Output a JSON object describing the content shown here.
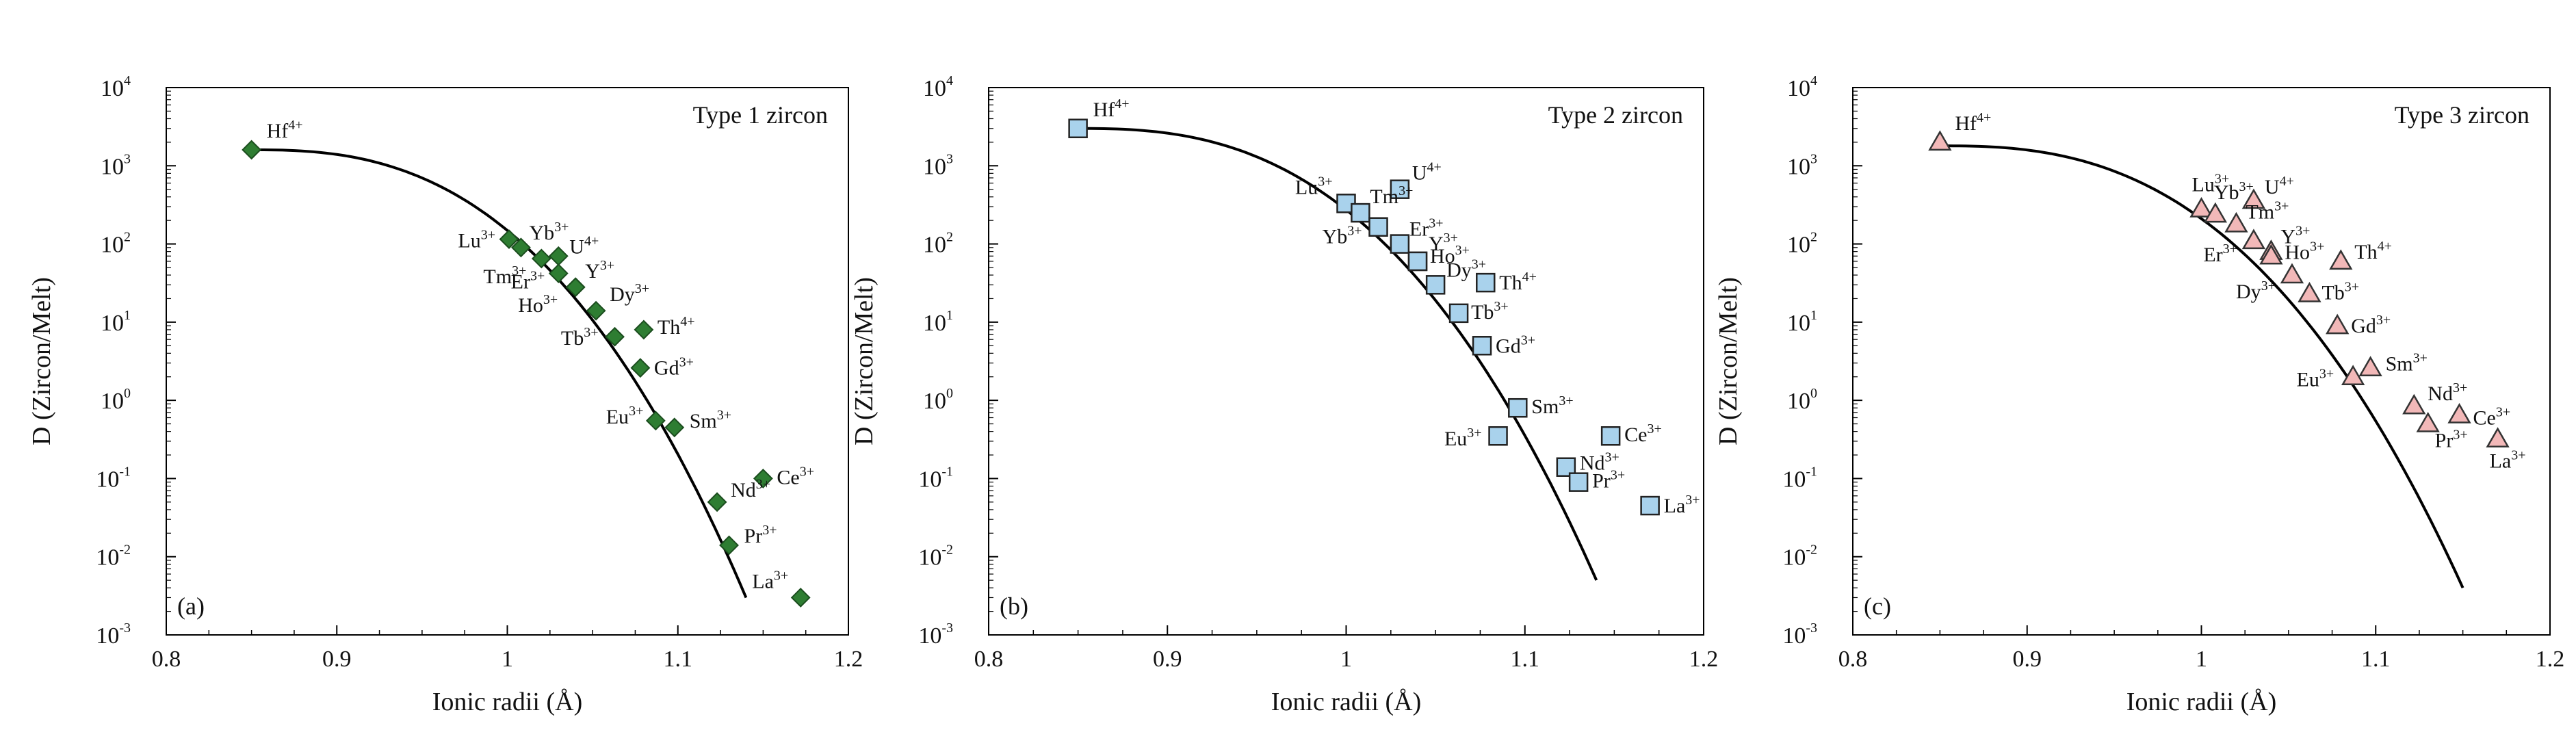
{
  "chart_data": [
    {
      "type": "scatter",
      "title": "Type 1 zircon",
      "panel_label": "(a)",
      "xlabel": "Ionic radii (Å)",
      "ylabel": "D (Zircon/Melt)",
      "xlim": [
        0.8,
        1.2
      ],
      "ylim_log10": [
        -3,
        4
      ],
      "xticks": [
        "0.8",
        "0.9",
        "1",
        "1.1",
        "1.2"
      ],
      "ytick_base": "10",
      "yticks_exp": [
        "-3",
        "-2",
        "-1",
        "0",
        "1",
        "2",
        "3",
        "4"
      ],
      "marker": "diamond",
      "marker_color": "#2e7d32",
      "curve": {
        "x0": 0.85,
        "x1": 1.14,
        "y0": 1600,
        "y1": 0.003
      },
      "points": [
        {
          "el": "Hf",
          "sup": "4+",
          "x": 0.85,
          "y": 1600
        },
        {
          "el": "Lu",
          "sup": "3+",
          "x": 1.001,
          "y": 115
        },
        {
          "el": "Yb",
          "sup": "3+",
          "x": 1.008,
          "y": 90
        },
        {
          "el": "Tm",
          "sup": "3+",
          "x": 1.02,
          "y": 65
        },
        {
          "el": "U",
          "sup": "4+",
          "x": 1.03,
          "y": 70
        },
        {
          "el": "Er",
          "sup": "3+",
          "x": 1.03,
          "y": 42
        },
        {
          "el": "Y",
          "sup": "3+",
          "x": 1.04,
          "y": 28
        },
        {
          "el": "Ho",
          "sup": "3+",
          "x": 1.04,
          "y": 28
        },
        {
          "el": "Dy",
          "sup": "3+",
          "x": 1.052,
          "y": 14
        },
        {
          "el": "Th",
          "sup": "4+",
          "x": 1.08,
          "y": 8
        },
        {
          "el": "Tb",
          "sup": "3+",
          "x": 1.063,
          "y": 6.5
        },
        {
          "el": "Gd",
          "sup": "3+",
          "x": 1.078,
          "y": 2.6
        },
        {
          "el": "Eu",
          "sup": "3+",
          "x": 1.087,
          "y": 0.55
        },
        {
          "el": "Sm",
          "sup": "3+",
          "x": 1.098,
          "y": 0.45
        },
        {
          "el": "Ce",
          "sup": "3+",
          "x": 1.15,
          "y": 0.1
        },
        {
          "el": "Nd",
          "sup": "3+",
          "x": 1.123,
          "y": 0.05
        },
        {
          "el": "Pr",
          "sup": "3+",
          "x": 1.13,
          "y": 0.014
        },
        {
          "el": "La",
          "sup": "3+",
          "x": 1.172,
          "y": 0.003
        }
      ]
    },
    {
      "type": "scatter",
      "title": "Type 2 zircon",
      "panel_label": "(b)",
      "xlabel": "Ionic radii (Å)",
      "ylabel": "D (Zircon/Melt)",
      "xlim": [
        0.8,
        1.2
      ],
      "ylim_log10": [
        -3,
        4
      ],
      "xticks": [
        "0.8",
        "0.9",
        "1",
        "1.1",
        "1.2"
      ],
      "ytick_base": "10",
      "yticks_exp": [
        "-3",
        "-2",
        "-1",
        "0",
        "1",
        "2",
        "3",
        "4"
      ],
      "marker": "square",
      "marker_color": "#a9d2ec",
      "curve": {
        "x0": 0.85,
        "x1": 1.14,
        "y0": 3000,
        "y1": 0.005
      },
      "points": [
        {
          "el": "Hf",
          "sup": "4+",
          "x": 0.85,
          "y": 3000
        },
        {
          "el": "U",
          "sup": "4+",
          "x": 1.03,
          "y": 500
        },
        {
          "el": "Lu",
          "sup": "3+",
          "x": 1.0,
          "y": 330
        },
        {
          "el": "Tm",
          "sup": "3+",
          "x": 1.008,
          "y": 250
        },
        {
          "el": "Yb",
          "sup": "3+",
          "x": 1.018,
          "y": 165
        },
        {
          "el": "Er",
          "sup": "3+",
          "x": 1.03,
          "y": 100
        },
        {
          "el": "Y",
          "sup": "3+",
          "x": 1.04,
          "y": 60
        },
        {
          "el": "Ho",
          "sup": "3+",
          "x": 1.04,
          "y": 60
        },
        {
          "el": "Dy",
          "sup": "3+",
          "x": 1.05,
          "y": 30
        },
        {
          "el": "Th",
          "sup": "4+",
          "x": 1.078,
          "y": 32
        },
        {
          "el": "Tb",
          "sup": "3+",
          "x": 1.063,
          "y": 13
        },
        {
          "el": "Gd",
          "sup": "3+",
          "x": 1.076,
          "y": 5
        },
        {
          "el": "Sm",
          "sup": "3+",
          "x": 1.096,
          "y": 0.8
        },
        {
          "el": "Eu",
          "sup": "3+",
          "x": 1.085,
          "y": 0.35
        },
        {
          "el": "Ce",
          "sup": "3+",
          "x": 1.148,
          "y": 0.35
        },
        {
          "el": "Nd",
          "sup": "3+",
          "x": 1.123,
          "y": 0.14
        },
        {
          "el": "Pr",
          "sup": "3+",
          "x": 1.13,
          "y": 0.09
        },
        {
          "el": "La",
          "sup": "3+",
          "x": 1.17,
          "y": 0.045
        }
      ]
    },
    {
      "type": "scatter",
      "title": "Type 3 zircon",
      "panel_label": "(c)",
      "xlabel": "Ionic radii (Å)",
      "ylabel": "D (Zircon/Melt)",
      "xlim": [
        0.8,
        1.2
      ],
      "ylim_log10": [
        -3,
        4
      ],
      "xticks": [
        "0.8",
        "0.9",
        "1",
        "1.1",
        "1.2"
      ],
      "ytick_base": "10",
      "yticks_exp": [
        "-3",
        "-2",
        "-1",
        "0",
        "1",
        "2",
        "3",
        "4"
      ],
      "marker": "triangle",
      "marker_color": "#f2b8b8",
      "curve": {
        "x0": 0.85,
        "x1": 1.15,
        "y0": 1800,
        "y1": 0.004
      },
      "points": [
        {
          "el": "Hf",
          "sup": "4+",
          "x": 0.85,
          "y": 2000
        },
        {
          "el": "Lu",
          "sup": "3+",
          "x": 1.0,
          "y": 280
        },
        {
          "el": "Yb",
          "sup": "3+",
          "x": 1.008,
          "y": 240
        },
        {
          "el": "U",
          "sup": "4+",
          "x": 1.03,
          "y": 360
        },
        {
          "el": "Tm",
          "sup": "3+",
          "x": 1.02,
          "y": 180
        },
        {
          "el": "Er",
          "sup": "3+",
          "x": 1.03,
          "y": 110
        },
        {
          "el": "Y",
          "sup": "3+",
          "x": 1.04,
          "y": 80
        },
        {
          "el": "Ho",
          "sup": "3+",
          "x": 1.04,
          "y": 70
        },
        {
          "el": "Th",
          "sup": "4+",
          "x": 1.08,
          "y": 60
        },
        {
          "el": "Dy",
          "sup": "3+",
          "x": 1.052,
          "y": 40
        },
        {
          "el": "Tb",
          "sup": "3+",
          "x": 1.062,
          "y": 23
        },
        {
          "el": "Gd",
          "sup": "3+",
          "x": 1.078,
          "y": 9
        },
        {
          "el": "Sm",
          "sup": "3+",
          "x": 1.097,
          "y": 2.6
        },
        {
          "el": "Eu",
          "sup": "3+",
          "x": 1.087,
          "y": 2
        },
        {
          "el": "Nd",
          "sup": "3+",
          "x": 1.122,
          "y": 0.85
        },
        {
          "el": "Ce",
          "sup": "3+",
          "x": 1.148,
          "y": 0.65
        },
        {
          "el": "Pr",
          "sup": "3+",
          "x": 1.13,
          "y": 0.5
        },
        {
          "el": "La",
          "sup": "3+",
          "x": 1.17,
          "y": 0.32
        }
      ]
    }
  ]
}
